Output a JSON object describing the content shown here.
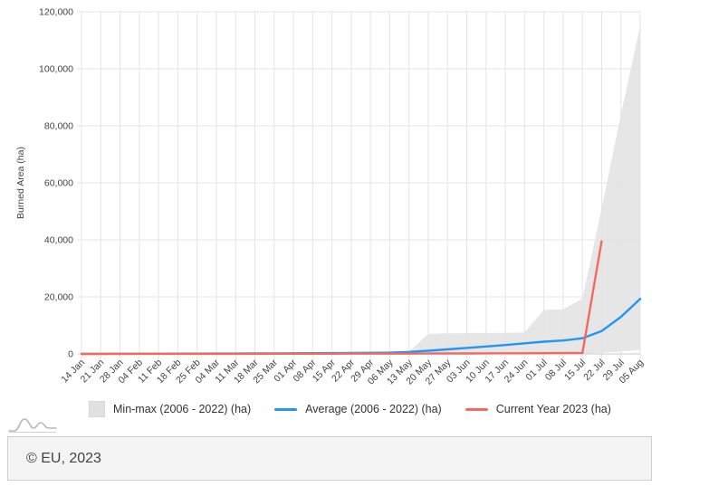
{
  "chart_data": {
    "type": "area",
    "title": "",
    "ylabel": "Burned Area (ha)",
    "ylim": [
      0,
      120000
    ],
    "ytick_step": 20000,
    "ytick_labels": [
      "0",
      "20,000",
      "40,000",
      "60,000",
      "80,000",
      "100,000",
      "120,000"
    ],
    "grid": true,
    "legend_position": "bottom",
    "categories": [
      "14 Jan",
      "21 Jan",
      "28 Jan",
      "04 Feb",
      "11 Feb",
      "18 Feb",
      "25 Feb",
      "04 Mar",
      "11 Mar",
      "18 Mar",
      "25 Mar",
      "01 Apr",
      "08 Apr",
      "15 Apr",
      "22 Apr",
      "29 Apr",
      "06 May",
      "13 May",
      "20 May",
      "27 May",
      "03 Jun",
      "10 Jun",
      "17 Jun",
      "24 Jun",
      "01 Jul",
      "08 Jul",
      "15 Jul",
      "22 Jul",
      "29 Jul",
      "05 Aug"
    ],
    "series": [
      {
        "name": "Min-max (2006 - 2022) (ha)",
        "kind": "band",
        "color": "#e3e3e3",
        "max": [
          50,
          60,
          80,
          100,
          120,
          150,
          180,
          220,
          260,
          300,
          340,
          380,
          420,
          460,
          500,
          550,
          650,
          800,
          7000,
          7200,
          7300,
          7350,
          7400,
          7500,
          15500,
          15600,
          19500,
          51000,
          84000,
          115000
        ],
        "min": [
          0,
          0,
          0,
          0,
          0,
          0,
          0,
          0,
          0,
          0,
          0,
          0,
          0,
          0,
          0,
          0,
          0,
          0,
          0,
          0,
          0,
          0,
          0,
          0,
          0,
          0,
          100,
          400,
          800,
          1400
        ]
      },
      {
        "name": "Average (2006 - 2022) (ha)",
        "kind": "line",
        "color": "#2196f3",
        "values": [
          30,
          40,
          50,
          60,
          70,
          90,
          100,
          120,
          140,
          160,
          190,
          220,
          250,
          290,
          330,
          380,
          450,
          700,
          1100,
          1600,
          2100,
          2600,
          3100,
          3700,
          4300,
          4700,
          5500,
          8000,
          13000,
          19300
        ]
      },
      {
        "name": "Current Year 2023 (ha)",
        "kind": "line",
        "color": "#f4695f",
        "values": [
          10,
          10,
          10,
          20,
          20,
          20,
          30,
          30,
          40,
          40,
          50,
          50,
          60,
          70,
          80,
          90,
          100,
          110,
          130,
          150,
          170,
          190,
          210,
          230,
          260,
          280,
          300,
          39500,
          null,
          null
        ]
      }
    ],
    "colors": {
      "grid": "#e4e4e4",
      "axis": "#c9c9c9",
      "tick_text": "#424242"
    }
  },
  "legend": {
    "items": [
      {
        "label": "Min-max (2006 - 2022) (ha)",
        "marker": "band",
        "color": "#e1e1e1"
      },
      {
        "label": "Average (2006 - 2022) (ha)",
        "marker": "line",
        "color": "#2196f3"
      },
      {
        "label": "Current Year 2023 (ha)",
        "marker": "line",
        "color": "#f4695f"
      }
    ]
  },
  "footer": {
    "copyright": "© EU, 2023"
  },
  "icons": {
    "logo": "waves-chart-logo-icon"
  }
}
